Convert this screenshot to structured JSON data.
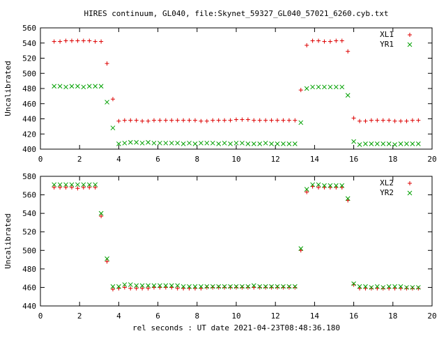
{
  "title": "HIRES continuum, GL040, file:Skynet_59327_GL040_57021_6260.cyb.txt",
  "xlabel": "rel seconds : UT date 2021-04-23T08:48:36.180",
  "colors": {
    "series_a": "#dd0000",
    "series_b": "#00a000"
  },
  "chart_data": [
    {
      "type": "scatter",
      "ylabel": "Uncalibrated",
      "xlim": [
        0,
        20
      ],
      "ylim": [
        400,
        560
      ],
      "xticks": [
        0,
        2,
        4,
        6,
        8,
        10,
        12,
        14,
        16,
        18,
        20
      ],
      "yticks": [
        400,
        420,
        440,
        460,
        480,
        500,
        520,
        540,
        560
      ],
      "legend_position": "top-right",
      "x": [
        0.7,
        0.95,
        1.2,
        1.45,
        1.7,
        1.95,
        2.2,
        2.45,
        2.7,
        2.95,
        3.2,
        3.45,
        3.7,
        3.95,
        4.2,
        4.45,
        4.7,
        4.95,
        5.2,
        5.45,
        5.7,
        5.95,
        6.2,
        6.45,
        6.7,
        6.95,
        7.2,
        7.45,
        7.7,
        7.95,
        8.2,
        8.45,
        8.7,
        8.95,
        9.2,
        9.45,
        9.7,
        9.95,
        10.2,
        10.45,
        10.7,
        10.95,
        11.2,
        11.45,
        11.7,
        11.95,
        12.2,
        12.45,
        12.7,
        12.95,
        13.2,
        13.45,
        13.7,
        13.95,
        14.2,
        14.45,
        14.7,
        14.95,
        15.2,
        15.45,
        15.7,
        15.95,
        16.2,
        16.45,
        16.7,
        16.95,
        17.2,
        17.45,
        17.7,
        17.95,
        18.2,
        18.45,
        18.7,
        18.95,
        19.2
      ],
      "series": [
        {
          "name": "XL1",
          "marker": "plus",
          "color": "#dd0000",
          "x": [
            0.7,
            1.0,
            1.3,
            1.6,
            1.9,
            2.2,
            2.5,
            2.8,
            3.1,
            3.4,
            3.7,
            4.0,
            4.3,
            4.6,
            4.9,
            5.2,
            5.5,
            5.8,
            6.1,
            6.4,
            6.7,
            7.0,
            7.3,
            7.6,
            7.9,
            8.2,
            8.5,
            8.8,
            9.1,
            9.4,
            9.7,
            10.0,
            10.3,
            10.6,
            10.9,
            11.2,
            11.5,
            11.8,
            12.1,
            12.4,
            12.7,
            13.0,
            13.3,
            13.6,
            13.9,
            14.2,
            14.5,
            14.8,
            15.1,
            15.4,
            15.7,
            16.0,
            16.3,
            16.6,
            16.9,
            17.2,
            17.5,
            17.8,
            18.1,
            18.4,
            18.7,
            19.0,
            19.3
          ],
          "y": [
            542,
            542,
            543,
            543,
            543,
            543,
            543,
            542,
            542,
            513,
            466,
            437,
            438,
            438,
            438,
            437,
            437,
            438,
            438,
            438,
            438,
            438,
            438,
            438,
            438,
            437,
            437,
            438,
            438,
            438,
            438,
            439,
            439,
            439,
            438,
            438,
            438,
            438,
            438,
            438,
            438,
            438,
            478,
            537,
            543,
            543,
            542,
            542,
            543,
            543,
            529,
            441,
            437,
            437,
            438,
            438,
            438,
            438,
            437,
            437,
            437,
            438,
            438
          ]
        },
        {
          "name": "YR1",
          "marker": "cross",
          "color": "#00a000",
          "x": [
            0.7,
            1.0,
            1.3,
            1.6,
            1.9,
            2.2,
            2.5,
            2.8,
            3.1,
            3.4,
            3.7,
            4.0,
            4.3,
            4.6,
            4.9,
            5.2,
            5.5,
            5.8,
            6.1,
            6.4,
            6.7,
            7.0,
            7.3,
            7.6,
            7.9,
            8.2,
            8.5,
            8.8,
            9.1,
            9.4,
            9.7,
            10.0,
            10.3,
            10.6,
            10.9,
            11.2,
            11.5,
            11.8,
            12.1,
            12.4,
            12.7,
            13.0,
            13.3,
            13.6,
            13.9,
            14.2,
            14.5,
            14.8,
            15.1,
            15.4,
            15.7,
            16.0,
            16.3,
            16.6,
            16.9,
            17.2,
            17.5,
            17.8,
            18.1,
            18.4,
            18.7,
            19.0,
            19.3
          ],
          "y": [
            483,
            483,
            482,
            483,
            483,
            482,
            483,
            483,
            483,
            462,
            428,
            407,
            408,
            409,
            409,
            408,
            409,
            408,
            408,
            408,
            408,
            408,
            407,
            408,
            407,
            408,
            408,
            408,
            407,
            408,
            407,
            408,
            408,
            407,
            407,
            407,
            408,
            407,
            407,
            407,
            407,
            407,
            435,
            480,
            482,
            482,
            482,
            482,
            482,
            482,
            471,
            410,
            406,
            407,
            407,
            407,
            407,
            407,
            406,
            407,
            407,
            407,
            407
          ]
        }
      ]
    },
    {
      "type": "scatter",
      "ylabel": "Uncalibrated",
      "xlim": [
        0,
        20
      ],
      "ylim": [
        440,
        580
      ],
      "xticks": [
        0,
        2,
        4,
        6,
        8,
        10,
        12,
        14,
        16,
        18,
        20
      ],
      "yticks": [
        440,
        460,
        480,
        500,
        520,
        540,
        560,
        580
      ],
      "legend_position": "top-right",
      "series": [
        {
          "name": "XL2",
          "marker": "plus",
          "color": "#dd0000",
          "x": [
            0.7,
            1.0,
            1.3,
            1.6,
            1.9,
            2.2,
            2.5,
            2.8,
            3.1,
            3.4,
            3.7,
            4.0,
            4.3,
            4.6,
            4.9,
            5.2,
            5.5,
            5.8,
            6.1,
            6.4,
            6.7,
            7.0,
            7.3,
            7.6,
            7.9,
            8.2,
            8.5,
            8.8,
            9.1,
            9.4,
            9.7,
            10.0,
            10.3,
            10.6,
            10.9,
            11.2,
            11.5,
            11.8,
            12.1,
            12.4,
            12.7,
            13.0,
            13.3,
            13.6,
            13.9,
            14.2,
            14.5,
            14.8,
            15.1,
            15.4,
            15.7,
            16.0,
            16.3,
            16.6,
            16.9,
            17.2,
            17.5,
            17.8,
            18.1,
            18.4,
            18.7,
            19.0,
            19.3
          ],
          "y": [
            568,
            568,
            568,
            568,
            567,
            568,
            568,
            568,
            537,
            488,
            458,
            459,
            460,
            459,
            459,
            459,
            459,
            460,
            460,
            460,
            460,
            459,
            459,
            459,
            459,
            459,
            460,
            460,
            460,
            460,
            460,
            460,
            460,
            460,
            460,
            460,
            460,
            460,
            460,
            460,
            460,
            460,
            500,
            563,
            569,
            568,
            568,
            568,
            568,
            568,
            554,
            463,
            459,
            459,
            459,
            459,
            459,
            459,
            459,
            459,
            459,
            459,
            459
          ]
        },
        {
          "name": "YR2",
          "marker": "cross",
          "color": "#00a000",
          "x": [
            0.7,
            1.0,
            1.3,
            1.6,
            1.9,
            2.2,
            2.5,
            2.8,
            3.1,
            3.4,
            3.7,
            4.0,
            4.3,
            4.6,
            4.9,
            5.2,
            5.5,
            5.8,
            6.1,
            6.4,
            6.7,
            7.0,
            7.3,
            7.6,
            7.9,
            8.2,
            8.5,
            8.8,
            9.1,
            9.4,
            9.7,
            10.0,
            10.3,
            10.6,
            10.9,
            11.2,
            11.5,
            11.8,
            12.1,
            12.4,
            12.7,
            13.0,
            13.3,
            13.6,
            13.9,
            14.2,
            14.5,
            14.8,
            15.1,
            15.4,
            15.7,
            16.0,
            16.3,
            16.6,
            16.9,
            17.2,
            17.5,
            17.8,
            18.1,
            18.4,
            18.7,
            19.0,
            19.3
          ],
          "y": [
            571,
            571,
            571,
            571,
            571,
            571,
            571,
            571,
            540,
            491,
            461,
            461,
            463,
            463,
            462,
            462,
            462,
            462,
            462,
            462,
            462,
            462,
            461,
            461,
            461,
            461,
            461,
            461,
            461,
            461,
            461,
            461,
            461,
            461,
            462,
            461,
            461,
            461,
            461,
            461,
            461,
            461,
            502,
            566,
            571,
            571,
            570,
            570,
            570,
            570,
            556,
            464,
            461,
            461,
            460,
            461,
            460,
            461,
            461,
            461,
            460,
            460,
            460
          ]
        }
      ]
    }
  ]
}
